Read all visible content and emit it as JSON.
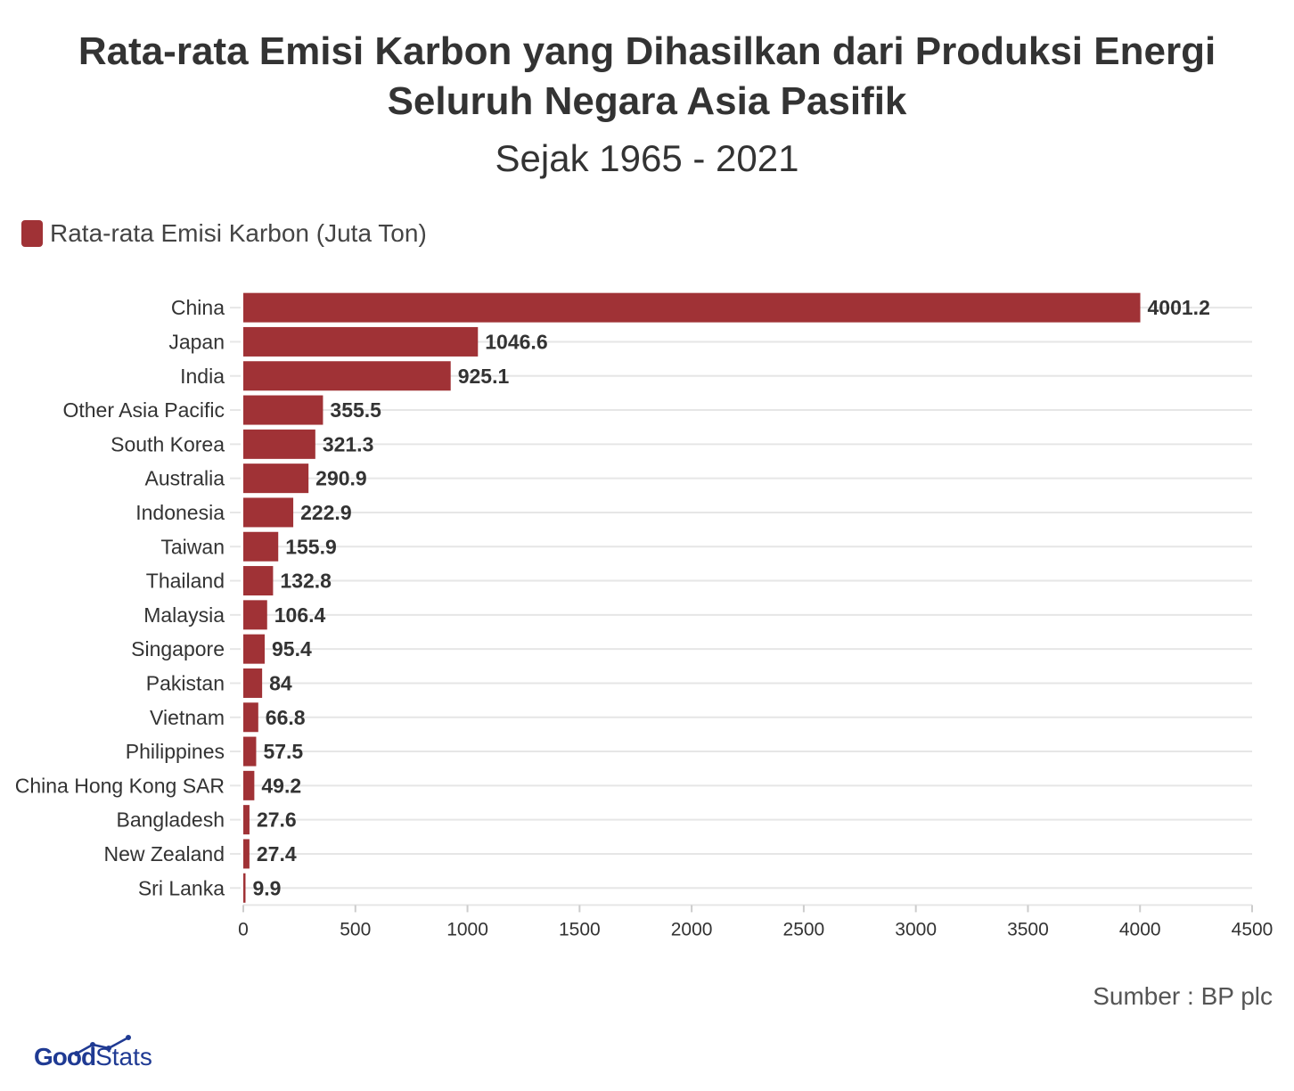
{
  "header": {
    "title_line1": "Rata-rata Emisi Karbon yang Dihasilkan dari Produksi Energi",
    "title_line2": "Seluruh Negara Asia Pasifik",
    "subtitle": "Sejak 1965 - 2021"
  },
  "source": "Sumber : BP plc",
  "logo": {
    "part1": "Good",
    "part2": "Stats",
    "color": "#1f3a93"
  },
  "chart_data": {
    "type": "bar",
    "orientation": "horizontal",
    "bar_color": "#a03236",
    "series": [
      {
        "name": "Rata-rata Emisi Karbon (Juta Ton)"
      }
    ],
    "categories": [
      "China",
      "Japan",
      "India",
      "Other Asia Pacific",
      "South Korea",
      "Australia",
      "Indonesia",
      "Taiwan",
      "Thailand",
      "Malaysia",
      "Singapore",
      "Pakistan",
      "Vietnam",
      "Philippines",
      "China Hong Kong SAR",
      "Bangladesh",
      "New Zealand",
      "Sri Lanka"
    ],
    "values": [
      4001.2,
      1046.6,
      925.1,
      355.5,
      321.3,
      290.9,
      222.9,
      155.9,
      132.8,
      106.4,
      95.4,
      84,
      66.8,
      57.5,
      49.2,
      27.6,
      27.4,
      9.9
    ],
    "value_labels": [
      "4001.2",
      "1046.6",
      "925.1",
      "355.5",
      "321.3",
      "290.9",
      "222.9",
      "155.9",
      "132.8",
      "106.4",
      "95.4",
      "84",
      "66.8",
      "57.5",
      "49.2",
      "27.6",
      "27.4",
      "9.9"
    ],
    "xlim": [
      0,
      4500
    ],
    "x_ticks": [
      0,
      500,
      1000,
      1500,
      2000,
      2500,
      3000,
      3500,
      4000,
      4500
    ],
    "legend_position": "top-left",
    "grid": true
  }
}
